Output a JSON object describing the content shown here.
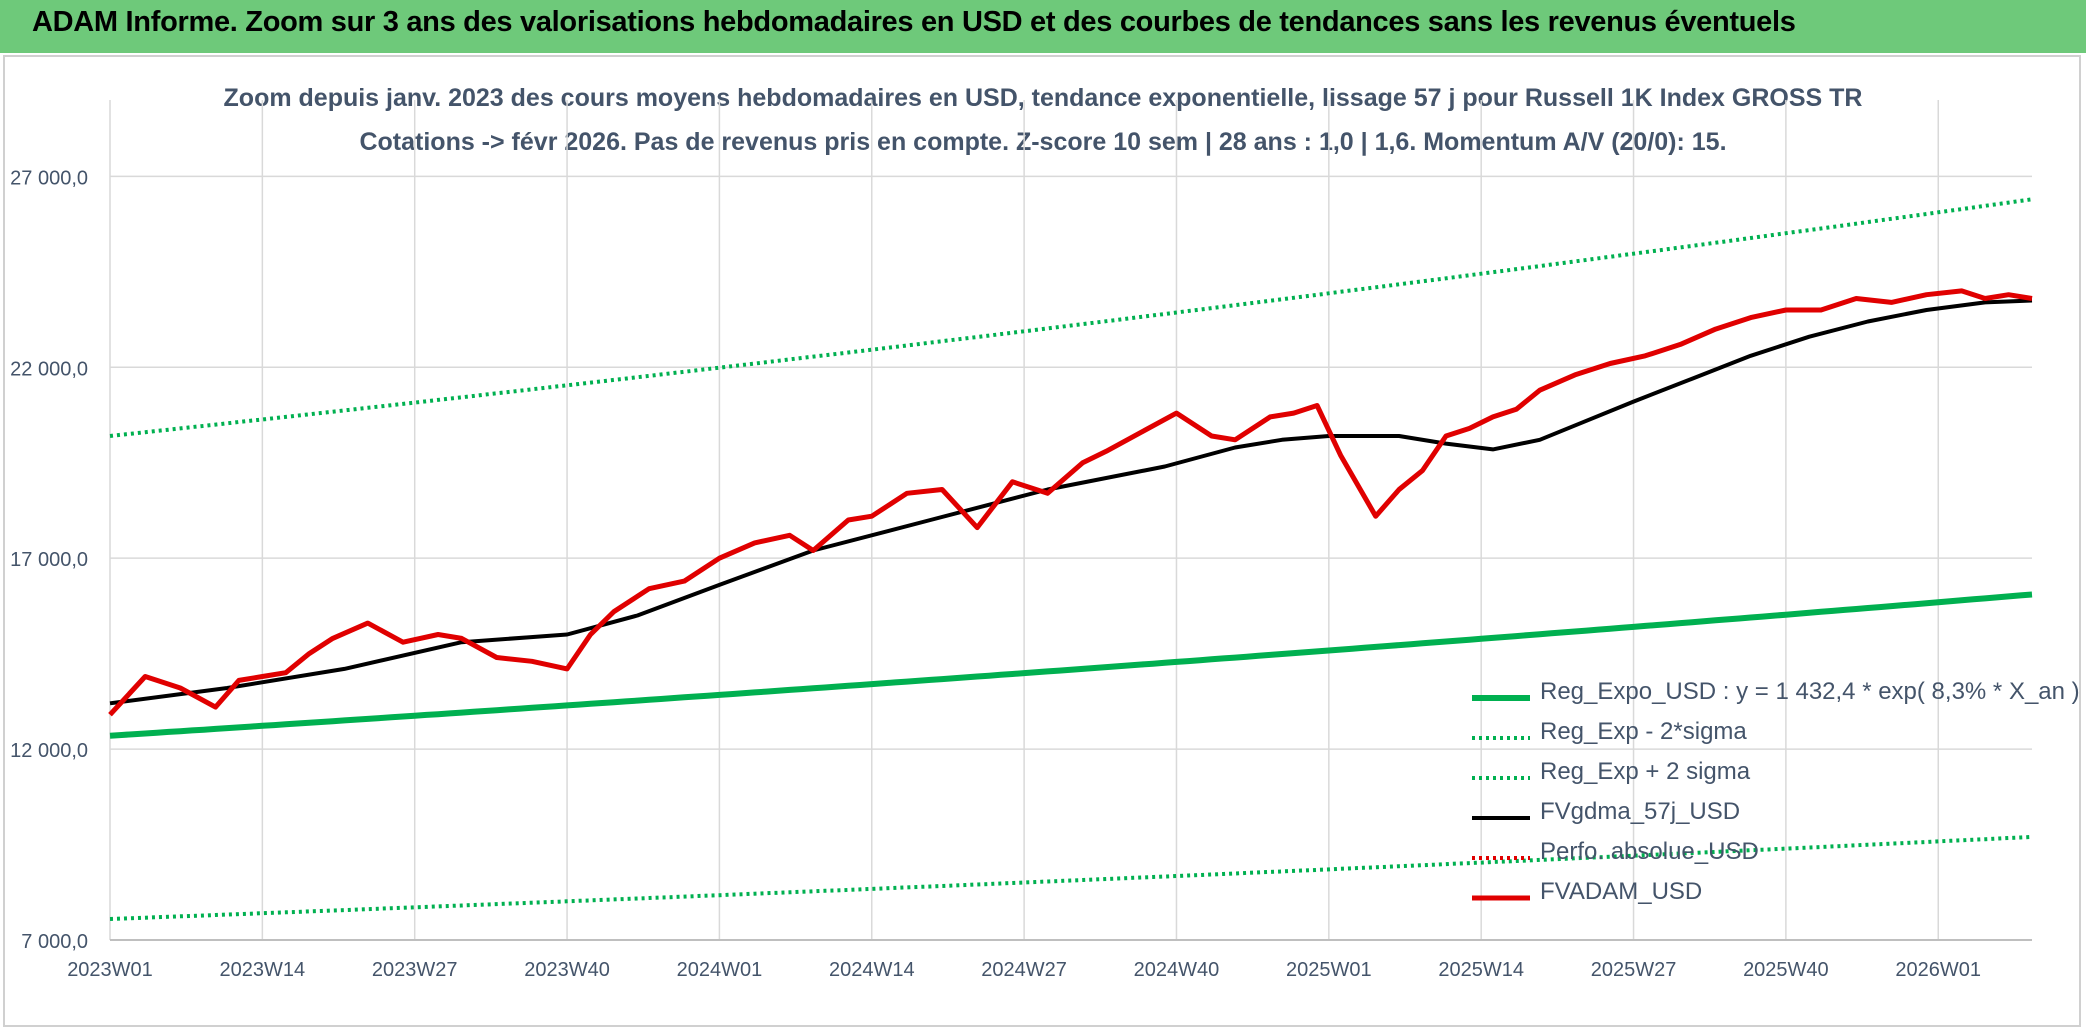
{
  "banner": {
    "title": "ADAM Informe. Zoom sur 3 ans des valorisations hebdomadaires en USD et des courbes de tendances sans les revenus éventuels"
  },
  "colors": {
    "banner_bg": "#6ec97a",
    "trend": "#00b050",
    "price": "#e00000",
    "sma": "#000000",
    "text": "#44546a",
    "grid": "#d9d9d9"
  },
  "chart_data": {
    "type": "line",
    "title": "Zoom depuis janv. 2023 des cours moyens hebdomadaires en USD, tendance exponentielle, lissage 57 j pour Russell 1K Index GROSS TR",
    "subtitle": "Cotations -> févr 2026. Pas de revenus pris en compte. Z-score 10 sem | 28 ans : 1,0 | 1,6. Momentum A/V (20/0): 15.",
    "xlabel": "",
    "ylabel": "",
    "ylim": [
      7000,
      29000
    ],
    "y_ticks": [
      "7 000,0",
      "12 000,0",
      "17 000,0",
      "22 000,0",
      "27 000,0"
    ],
    "y_tick_values": [
      7000,
      12000,
      17000,
      22000,
      27000
    ],
    "x_tick_labels": [
      "2023W01",
      "2023W14",
      "2023W27",
      "2023W40",
      "2024W01",
      "2024W14",
      "2024W27",
      "2024W40",
      "2025W01",
      "2025W14",
      "2025W27",
      "2025W40",
      "2026W01"
    ],
    "x_range_weeks": [
      0,
      164
    ],
    "grid": true,
    "legend_position": "bottom-right",
    "series": [
      {
        "name": "Reg_Expo_USD : y = 1 432,4 * exp( 8,3% *  X_an )",
        "style": "solid-thick",
        "color": "#00b050",
        "x": [
          0,
          164
        ],
        "values": [
          12350,
          16050
        ],
        "curve": "exponential"
      },
      {
        "name": "Reg_Exp - 2*sigma",
        "style": "dotted",
        "color": "#00b050",
        "x": [
          0,
          164
        ],
        "values": [
          7550,
          9700
        ],
        "curve": "exponential"
      },
      {
        "name": "Reg_Exp + 2 sigma",
        "style": "dotted",
        "color": "#00b050",
        "x": [
          0,
          164
        ],
        "values": [
          20200,
          26400
        ],
        "curve": "exponential"
      },
      {
        "name": "FVgdma_57j_USD",
        "style": "solid",
        "color": "#000000",
        "x": [
          0,
          10,
          20,
          30,
          39,
          45,
          52,
          60,
          70,
          80,
          90,
          96,
          100,
          104,
          110,
          114,
          118,
          122,
          126,
          130,
          135,
          140,
          145,
          150,
          155,
          160,
          164
        ],
        "values": [
          13200,
          13600,
          14100,
          14800,
          15000,
          15500,
          16300,
          17200,
          18000,
          18800,
          19400,
          19900,
          20100,
          20200,
          20200,
          20000,
          19850,
          20100,
          20600,
          21100,
          21700,
          22300,
          22800,
          23200,
          23500,
          23700,
          23750
        ]
      },
      {
        "name": "Perfo. absolue_USD",
        "style": "dotted",
        "color": "#e00000",
        "values": []
      },
      {
        "name": "FVADAM_USD",
        "style": "solid-thick",
        "color": "#e00000",
        "x": [
          0,
          3,
          6,
          9,
          11,
          13,
          15,
          17,
          19,
          22,
          25,
          28,
          30,
          33,
          36,
          39,
          41,
          43,
          46,
          49,
          52,
          55,
          58,
          60,
          63,
          65,
          68,
          71,
          74,
          77,
          80,
          83,
          85,
          88,
          91,
          94,
          96,
          99,
          101,
          103,
          105,
          108,
          110,
          112,
          114,
          116,
          118,
          120,
          122,
          125,
          128,
          131,
          134,
          137,
          140,
          143,
          146,
          149,
          152,
          155,
          158,
          160,
          162,
          164
        ],
        "values": [
          12900,
          13900,
          13600,
          13100,
          13800,
          13900,
          14000,
          14500,
          14900,
          15300,
          14800,
          15000,
          14900,
          14400,
          14300,
          14100,
          15000,
          15600,
          16200,
          16400,
          17000,
          17400,
          17600,
          17200,
          18000,
          18100,
          18700,
          18800,
          17800,
          19000,
          18700,
          19500,
          19800,
          20300,
          20800,
          20200,
          20100,
          20700,
          20800,
          21000,
          19700,
          18100,
          18800,
          19300,
          20200,
          20400,
          20700,
          20900,
          21400,
          21800,
          22100,
          22300,
          22600,
          23000,
          23300,
          23500,
          23500,
          23800,
          23700,
          23900,
          24000,
          23800,
          23900,
          23800
        ]
      }
    ]
  }
}
